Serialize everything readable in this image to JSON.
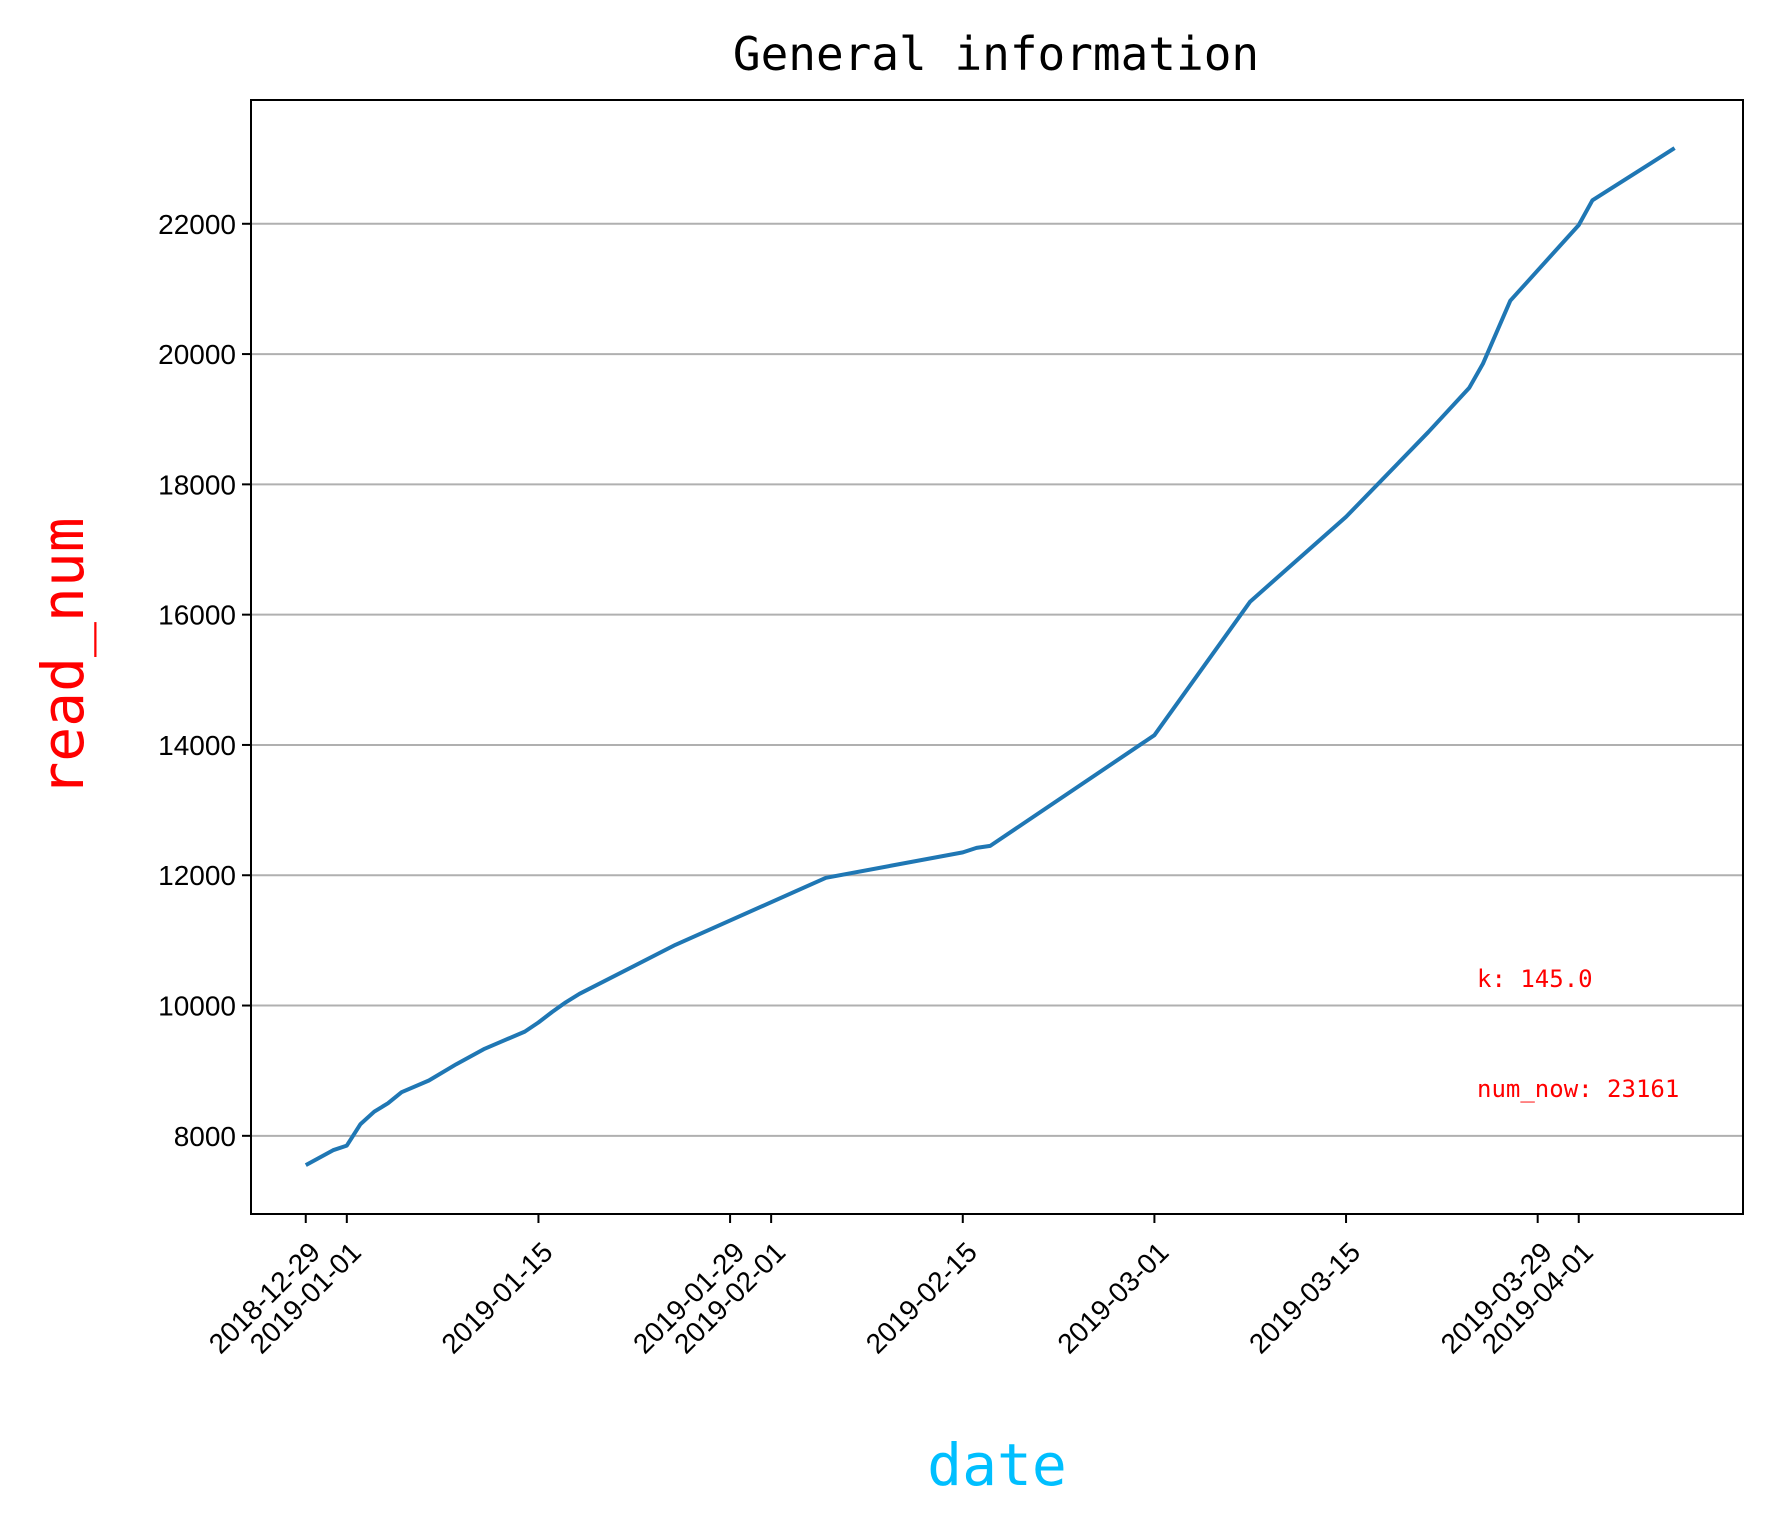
{
  "chart_data": {
    "type": "line",
    "title": "General information",
    "xlabel": "date",
    "ylabel": "read_num",
    "xlabel_color": "#00bfff",
    "ylabel_color": "#ff0000",
    "line_color": "#1f77b4",
    "grid": "y-major",
    "xlim": [
      "2018-12-25",
      "2019-04-13"
    ],
    "ylim": [
      6800,
      23900
    ],
    "yticks": [
      8000,
      10000,
      12000,
      14000,
      16000,
      18000,
      20000,
      22000
    ],
    "ytick_labels": [
      "8000",
      "10000",
      "12000",
      "14000",
      "16000",
      "18000",
      "20000",
      "22000"
    ],
    "xticks": [
      "2018-12-29",
      "2019-01-01",
      "2019-01-15",
      "2019-01-29",
      "2019-02-01",
      "2019-02-15",
      "2019-03-01",
      "2019-03-15",
      "2019-03-29",
      "2019-04-01"
    ],
    "x": [
      "2018-12-29",
      "2018-12-31",
      "2019-01-01",
      "2019-01-02",
      "2019-01-03",
      "2019-01-04",
      "2019-01-05",
      "2019-01-07",
      "2019-01-09",
      "2019-01-11",
      "2019-01-12",
      "2019-01-14",
      "2019-01-15",
      "2019-01-16",
      "2019-01-17",
      "2019-01-18",
      "2019-01-25",
      "2019-02-05",
      "2019-02-15",
      "2019-02-16",
      "2019-02-17",
      "2019-03-01",
      "2019-03-08",
      "2019-03-15",
      "2019-03-21",
      "2019-03-24",
      "2019-03-25",
      "2019-03-27",
      "2019-03-31",
      "2019-04-01",
      "2019-04-02",
      "2019-04-08"
    ],
    "series": [
      {
        "values": [
          7550,
          7780,
          7850,
          8180,
          8370,
          8500,
          8670,
          8850,
          9100,
          9330,
          9420,
          9600,
          9740,
          9900,
          10050,
          10180,
          10930,
          11960,
          12350,
          12420,
          12450,
          14150,
          16200,
          17500,
          18800,
          19480,
          19850,
          20820,
          21750,
          21980,
          22360,
          23161
        ]
      }
    ],
    "annotations": [
      {
        "text": "k: 145.0",
        "color": "#ff0000"
      },
      {
        "text": "num_now: 23161",
        "color": "#ff0000"
      }
    ]
  }
}
